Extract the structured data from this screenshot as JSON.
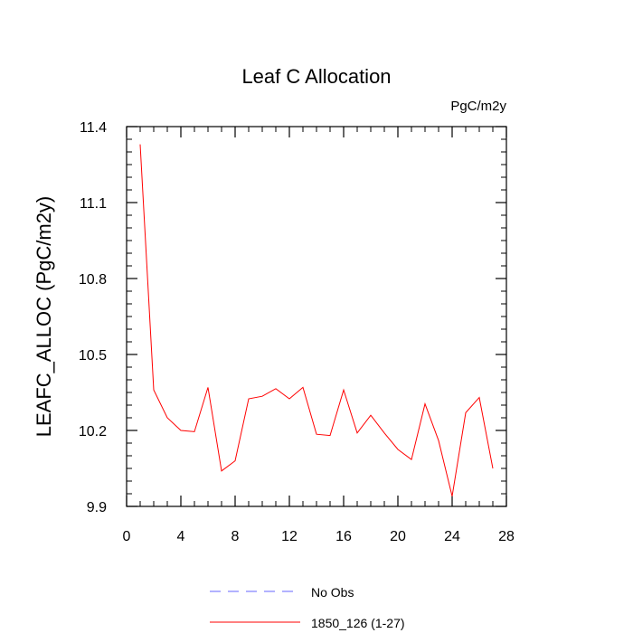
{
  "chart_data": {
    "type": "line",
    "title": "Leaf C Allocation",
    "units": "PgC/m2y",
    "xlabel": "",
    "ylabel": "LEAFC_ALLOC  (PgC/m2y)",
    "xlim": [
      0,
      28
    ],
    "ylim": [
      9.9,
      11.4
    ],
    "x_ticks": [
      "0",
      "4",
      "8",
      "12",
      "16",
      "20",
      "24",
      "28"
    ],
    "x_tick_values": [
      0,
      4,
      8,
      12,
      16,
      20,
      24,
      28
    ],
    "y_ticks": [
      "9.9",
      "10.2",
      "10.5",
      "10.8",
      "11.1",
      "11.4"
    ],
    "y_tick_values": [
      9.9,
      10.2,
      10.5,
      10.8,
      11.1,
      11.4
    ],
    "x_minor_step": 1,
    "y_minor_step": 0.05,
    "grid": false,
    "legend_position": "bottom",
    "series": [
      {
        "name": "No Obs",
        "color": "#6666ff",
        "style": "dashed",
        "x": [],
        "values": []
      },
      {
        "name": "1850_126 (1-27)",
        "color": "#ff0000",
        "style": "solid",
        "x": [
          1,
          2,
          3,
          4,
          5,
          6,
          7,
          8,
          9,
          10,
          11,
          12,
          13,
          14,
          15,
          16,
          17,
          18,
          19,
          20,
          21,
          22,
          23,
          24,
          25,
          26,
          27
        ],
        "values": [
          11.33,
          10.36,
          10.25,
          10.2,
          10.195,
          10.37,
          10.04,
          10.08,
          10.325,
          10.335,
          10.365,
          10.325,
          10.37,
          10.185,
          10.18,
          10.36,
          10.19,
          10.26,
          10.19,
          10.125,
          10.085,
          10.305,
          10.16,
          9.94,
          10.27,
          10.33,
          10.05
        ]
      }
    ]
  }
}
